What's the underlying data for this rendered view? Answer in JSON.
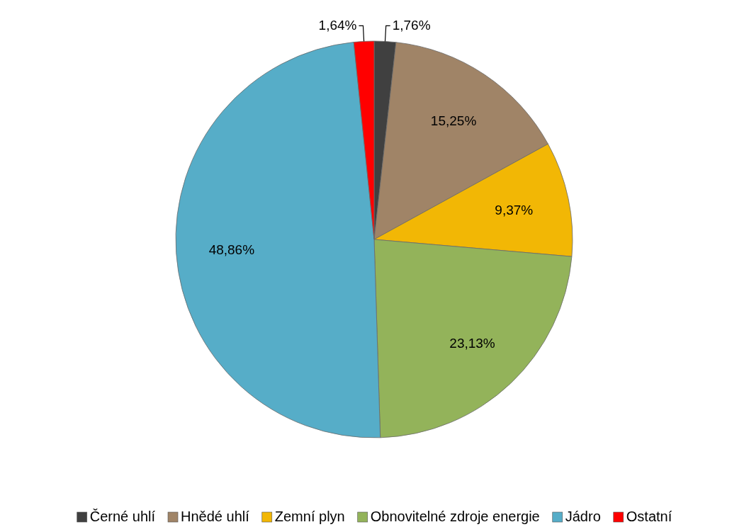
{
  "chart_data": {
    "type": "pie",
    "categories": [
      "Černé uhlí",
      "Hnědé uhlí",
      "Zemní plyn",
      "Obnovitelné zdroje energie",
      "Jádro",
      "Ostatní"
    ],
    "values": [
      1.76,
      15.25,
      9.37,
      23.13,
      48.86,
      1.64
    ],
    "colors": [
      "#404040",
      "#a08467",
      "#f2b705",
      "#93b35a",
      "#56adc8",
      "#ff0000"
    ],
    "value_labels": [
      "1,76%",
      "15,25%",
      "9,37%",
      "23,13%",
      "48,86%",
      "1,64%"
    ],
    "legend": "bottom"
  }
}
